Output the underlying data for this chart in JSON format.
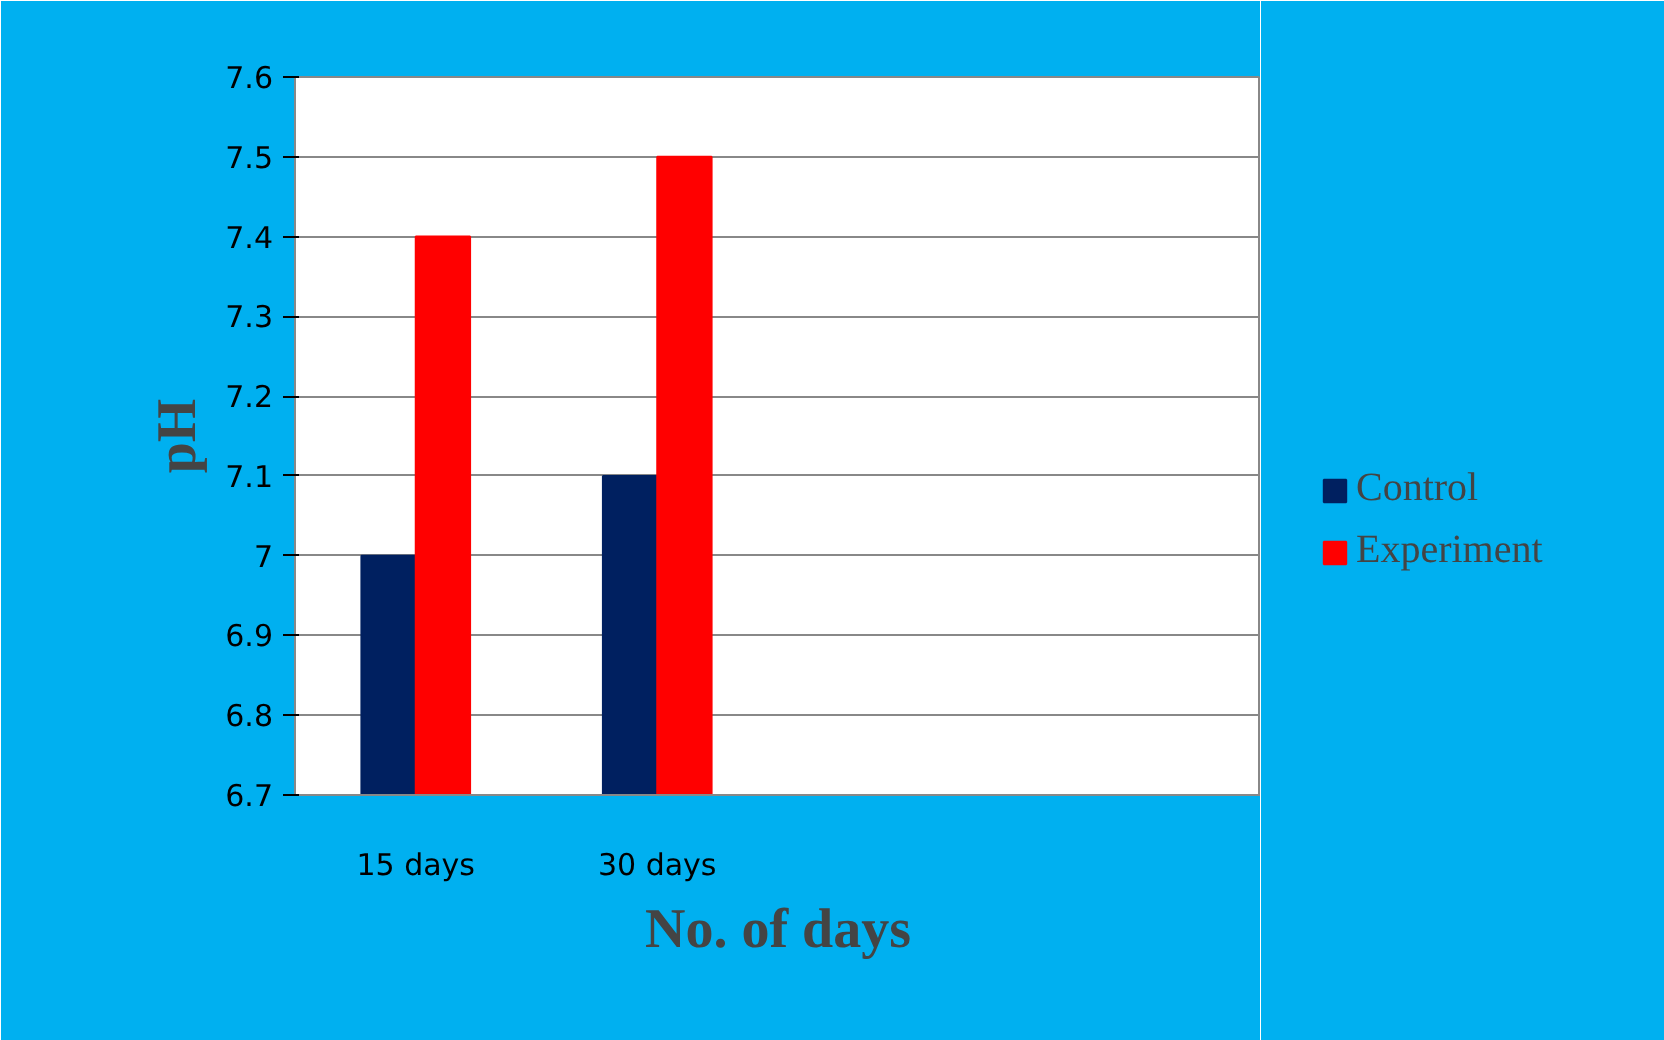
{
  "chart_data": {
    "type": "bar",
    "xlabel": "No. of days",
    "ylabel": "pH",
    "categories": [
      "15 days",
      "30 days",
      null,
      null
    ],
    "series": [
      {
        "name": "Control",
        "color": "#002060",
        "values": [
          7.0,
          7.1,
          null,
          null
        ]
      },
      {
        "name": "Experiment",
        "color": "#ff0000",
        "values": [
          7.4,
          7.5,
          null,
          null
        ]
      }
    ],
    "ylim": [
      6.7,
      7.6
    ],
    "yticks": [
      {
        "value": 6.7,
        "label": "6.7"
      },
      {
        "value": 6.8,
        "label": "6.8"
      },
      {
        "value": 6.9,
        "label": "6.9"
      },
      {
        "value": 7.0,
        "label": "7"
      },
      {
        "value": 7.1,
        "label": "7.1"
      },
      {
        "value": 7.2,
        "label": "7.2"
      },
      {
        "value": 7.3,
        "label": "7.3"
      },
      {
        "value": 7.4,
        "label": "7.4"
      },
      {
        "value": 7.5,
        "label": "7.5"
      },
      {
        "value": 7.6,
        "label": "7.6"
      }
    ],
    "grid": "y",
    "legend": "right"
  }
}
